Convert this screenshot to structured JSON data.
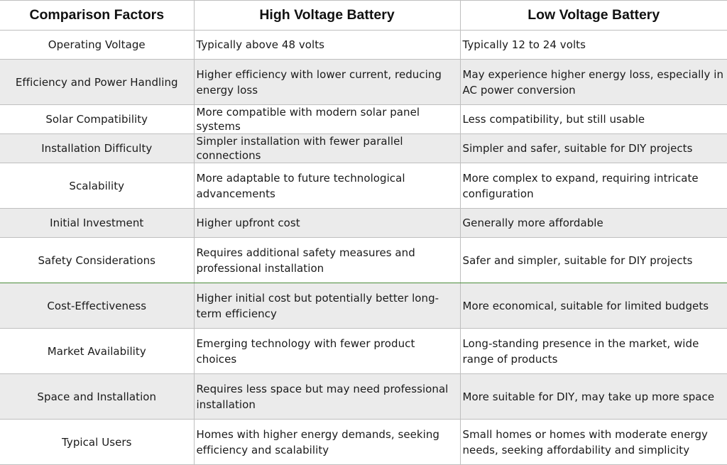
{
  "table": {
    "headers": [
      "Comparison Factors",
      "High Voltage Battery",
      "Low Voltage Battery"
    ],
    "rows": [
      {
        "factor": "Operating Voltage",
        "high": "Typically above 48 volts",
        "low": "Typically 12 to 24 volts"
      },
      {
        "factor": "Efficiency and Power Handling",
        "high": "Higher efficiency with lower current, reducing energy loss",
        "low": "May experience higher energy loss, especially in AC power conversion"
      },
      {
        "factor": "Solar Compatibility",
        "high": "More compatible with modern solar panel systems",
        "low": "Less compatibility, but still usable"
      },
      {
        "factor": "Installation Difficulty",
        "high": "Simpler installation with fewer parallel connections",
        "low": "Simpler and safer, suitable for DIY projects"
      },
      {
        "factor": "Scalability",
        "high": "More adaptable to future technological advancements",
        "low": "More complex to expand, requiring intricate configuration"
      },
      {
        "factor": "Initial Investment",
        "high": "Higher upfront cost",
        "low": "Generally more affordable"
      },
      {
        "factor": "Safety Considerations",
        "high": "Requires additional safety measures and professional installation",
        "low": "Safer and simpler, suitable for DIY projects"
      },
      {
        "factor": "Cost-Effectiveness",
        "high": "Higher initial cost but potentially better long-term efficiency",
        "low": "More economical, suitable for limited budgets"
      },
      {
        "factor": "Market Availability",
        "high": "Emerging technology with fewer product choices",
        "low": "Long-standing presence in the market, wide range of products"
      },
      {
        "factor": "Space and Installation",
        "high": "Requires less space but may need professional installation",
        "low": "More suitable for DIY, may take up more space"
      },
      {
        "factor": "Typical Users",
        "high": "Homes with higher energy demands, seeking efficiency and scalability",
        "low": "Small homes or homes with moderate energy needs, seeking affordability and simplicity"
      }
    ]
  }
}
